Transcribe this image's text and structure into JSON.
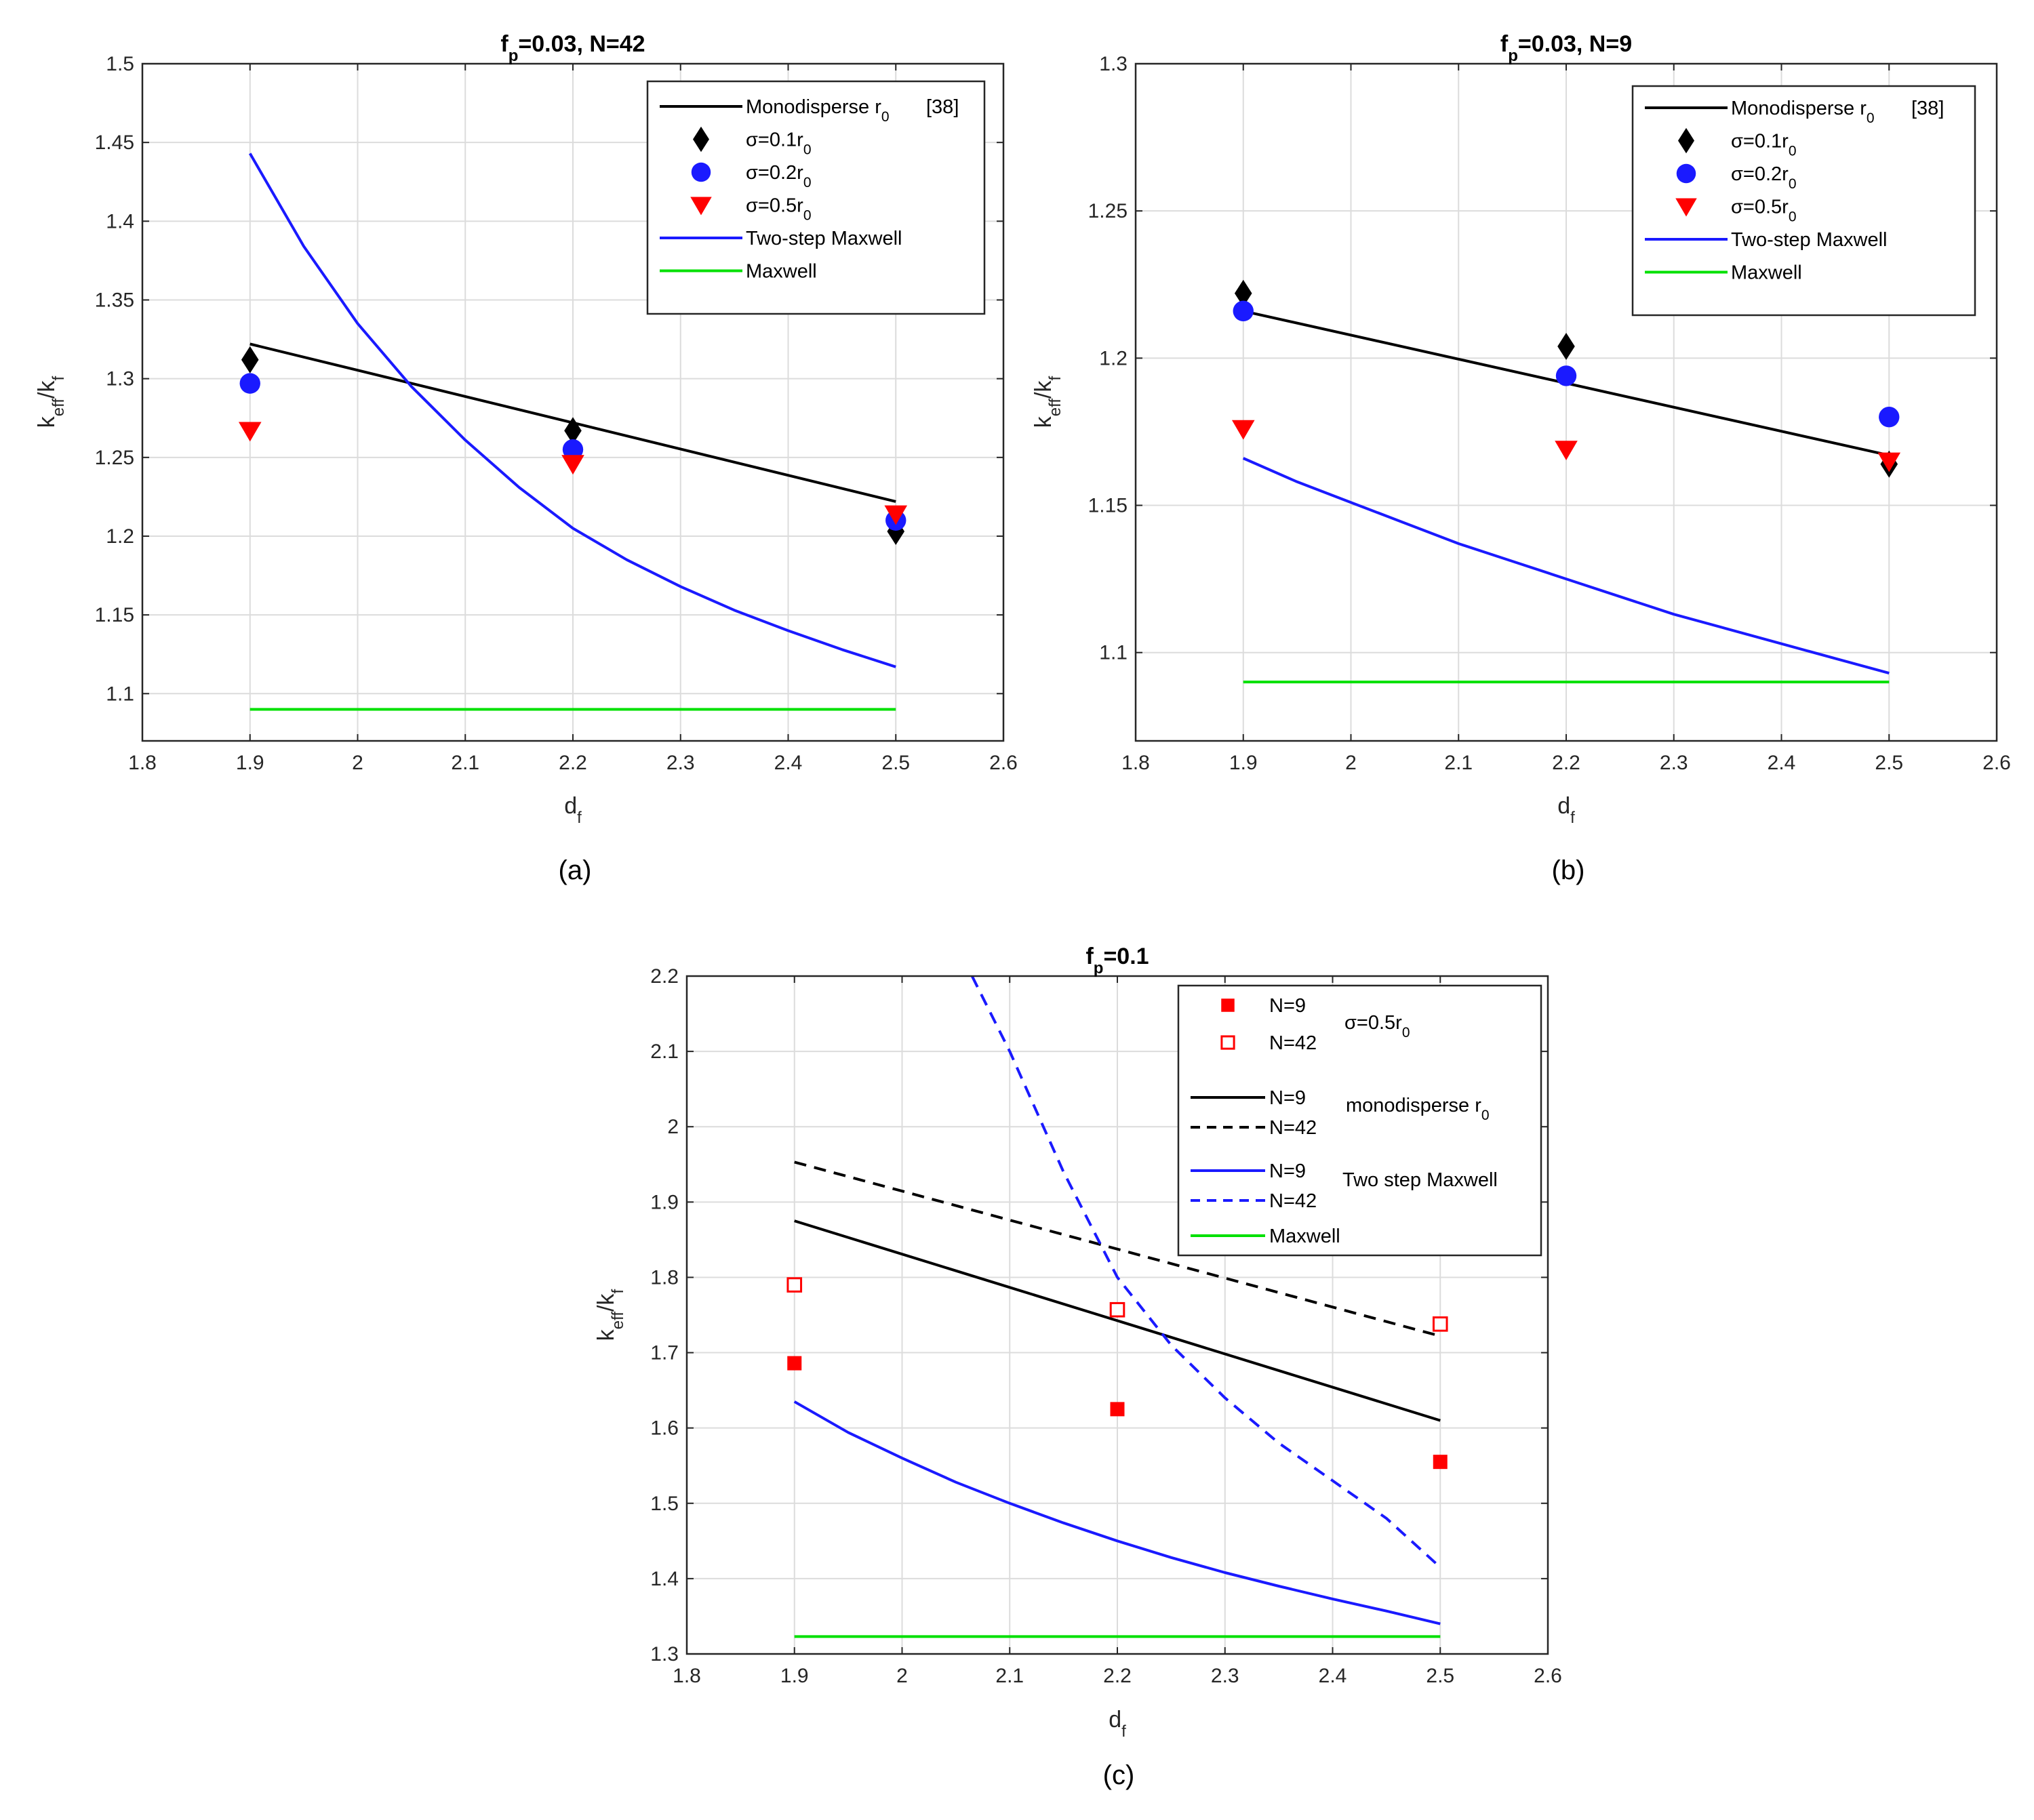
{
  "colors": {
    "black": "#000000",
    "blue": "#1a1aff",
    "red": "#ff0000",
    "green": "#00e000"
  },
  "chart_data": [
    {
      "id": "a",
      "type": "line",
      "caption": "(a)",
      "title": {
        "main": "f",
        "sub": "p",
        "rest": "=0.03, N=42"
      },
      "xlabel": {
        "main": "d",
        "sub": "f"
      },
      "ylabel": {
        "main": "k",
        "sub1": "eff",
        "mid": "/k",
        "sub2": "f"
      },
      "xlim": [
        1.8,
        2.6
      ],
      "ylim": [
        1.07,
        1.5
      ],
      "xticks": [
        1.8,
        1.9,
        2.0,
        2.1,
        2.2,
        2.3,
        2.4,
        2.5,
        2.6
      ],
      "xticklabels": [
        "1.8",
        "1.9",
        "2",
        "2.1",
        "2.2",
        "2.3",
        "2.4",
        "2.5",
        "2.6"
      ],
      "yticks": [
        1.1,
        1.15,
        1.2,
        1.25,
        1.3,
        1.35,
        1.4,
        1.45,
        1.5
      ],
      "yticklabels": [
        "1.1",
        "1.15",
        "1.2",
        "1.25",
        "1.3",
        "1.35",
        "1.4",
        "1.45",
        "1.5"
      ],
      "legend": "top-right",
      "series": [
        {
          "name": "Monodisperse r",
          "sub": "0",
          "suffix": "[38]",
          "style": "line",
          "color": "#000000",
          "dash": false,
          "x": [
            1.9,
            2.5
          ],
          "y": [
            1.322,
            1.222
          ]
        },
        {
          "name": "σ=0.1r",
          "sub": "0",
          "style": "marker",
          "marker": "diamond",
          "color": "#000000",
          "filled": true,
          "x": [
            1.9,
            2.2,
            2.5
          ],
          "y": [
            1.312,
            1.267,
            1.203
          ]
        },
        {
          "name": "σ=0.2r",
          "sub": "0",
          "style": "marker",
          "marker": "circle",
          "color": "#1a1aff",
          "filled": true,
          "x": [
            1.9,
            2.2,
            2.5
          ],
          "y": [
            1.297,
            1.255,
            1.21
          ]
        },
        {
          "name": "σ=0.5r",
          "sub": "0",
          "style": "marker",
          "marker": "triangle-down",
          "color": "#ff0000",
          "filled": true,
          "x": [
            1.9,
            2.2,
            2.5
          ],
          "y": [
            1.267,
            1.246,
            1.214
          ]
        },
        {
          "name": "Two-step Maxwell",
          "style": "line",
          "color": "#1a1aff",
          "dash": false,
          "x": [
            1.9,
            1.95,
            2.0,
            2.05,
            2.1,
            2.15,
            2.2,
            2.25,
            2.3,
            2.35,
            2.4,
            2.45,
            2.5
          ],
          "y": [
            1.443,
            1.384,
            1.335,
            1.295,
            1.261,
            1.231,
            1.205,
            1.185,
            1.168,
            1.153,
            1.14,
            1.128,
            1.117
          ]
        },
        {
          "name": "Maxwell",
          "style": "line",
          "color": "#00e000",
          "dash": false,
          "x": [
            1.9,
            2.5
          ],
          "y": [
            1.09,
            1.09
          ]
        }
      ]
    },
    {
      "id": "b",
      "type": "line",
      "caption": "(b)",
      "title": {
        "main": "f",
        "sub": "p",
        "rest": "=0.03, N=9"
      },
      "xlabel": {
        "main": "d",
        "sub": "f"
      },
      "ylabel": {
        "main": "k",
        "sub1": "eff",
        "mid": "/k",
        "sub2": "f"
      },
      "xlim": [
        1.8,
        2.6
      ],
      "ylim": [
        1.07,
        1.3
      ],
      "xticks": [
        1.8,
        1.9,
        2.0,
        2.1,
        2.2,
        2.3,
        2.4,
        2.5,
        2.6
      ],
      "xticklabels": [
        "1.8",
        "1.9",
        "2",
        "2.1",
        "2.2",
        "2.3",
        "2.4",
        "2.5",
        "2.6"
      ],
      "yticks": [
        1.1,
        1.15,
        1.2,
        1.25,
        1.3
      ],
      "yticklabels": [
        "1.1",
        "1.15",
        "1.2",
        "1.25",
        "1.3"
      ],
      "legend": "top-right",
      "series": [
        {
          "name": "Monodisperse r",
          "sub": "0",
          "suffix": "[38]",
          "style": "line",
          "color": "#000000",
          "dash": false,
          "x": [
            1.9,
            2.5
          ],
          "y": [
            1.216,
            1.167
          ]
        },
        {
          "name": "σ=0.1r",
          "sub": "0",
          "style": "marker",
          "marker": "diamond",
          "color": "#000000",
          "filled": true,
          "x": [
            1.9,
            2.2,
            2.5
          ],
          "y": [
            1.222,
            1.204,
            1.164
          ]
        },
        {
          "name": "σ=0.2r",
          "sub": "0",
          "style": "marker",
          "marker": "circle",
          "color": "#1a1aff",
          "filled": true,
          "x": [
            1.9,
            2.2,
            2.5
          ],
          "y": [
            1.216,
            1.194,
            1.18
          ]
        },
        {
          "name": "σ=0.5r",
          "sub": "0",
          "style": "marker",
          "marker": "triangle-down",
          "color": "#ff0000",
          "filled": true,
          "x": [
            1.9,
            2.2,
            2.5
          ],
          "y": [
            1.176,
            1.169,
            1.165
          ]
        },
        {
          "name": "Two-step Maxwell",
          "style": "line",
          "color": "#1a1aff",
          "dash": false,
          "x": [
            1.9,
            1.95,
            2.0,
            2.05,
            2.1,
            2.15,
            2.2,
            2.25,
            2.3,
            2.35,
            2.4,
            2.45,
            2.5
          ],
          "y": [
            1.166,
            1.158,
            1.151,
            1.144,
            1.137,
            1.131,
            1.125,
            1.119,
            1.113,
            1.108,
            1.103,
            1.098,
            1.093
          ]
        },
        {
          "name": "Maxwell",
          "style": "line",
          "color": "#00e000",
          "dash": false,
          "x": [
            1.9,
            2.5
          ],
          "y": [
            1.09,
            1.09
          ]
        }
      ]
    },
    {
      "id": "c",
      "type": "line",
      "caption": "(c)",
      "title": {
        "main": "f",
        "sub": "p",
        "rest": "=0.1"
      },
      "xlabel": {
        "main": "d",
        "sub": "f"
      },
      "ylabel": {
        "main": "k",
        "sub1": "eff",
        "mid": "/k",
        "sub2": "f"
      },
      "xlim": [
        1.8,
        2.6
      ],
      "ylim": [
        1.3,
        2.2
      ],
      "xticks": [
        1.8,
        1.9,
        2.0,
        2.1,
        2.2,
        2.3,
        2.4,
        2.5,
        2.6
      ],
      "xticklabels": [
        "1.8",
        "1.9",
        "2",
        "2.1",
        "2.2",
        "2.3",
        "2.4",
        "2.5",
        "2.6"
      ],
      "yticks": [
        1.3,
        1.4,
        1.5,
        1.6,
        1.7,
        1.8,
        1.9,
        2.0,
        2.1,
        2.2
      ],
      "yticklabels": [
        "1.3",
        "1.4",
        "1.5",
        "1.6",
        "1.7",
        "1.8",
        "1.9",
        "2",
        "2.1",
        "2.2"
      ],
      "legend": "top-right",
      "legend_groups": [
        {
          "label": "σ=0.5r",
          "sub": "0"
        },
        {
          "label": "monodisperse r",
          "sub": "0"
        },
        {
          "label": "Two step Maxwell"
        }
      ],
      "series": [
        {
          "name": "N=9",
          "style": "marker",
          "marker": "square",
          "color": "#ff0000",
          "filled": true,
          "x": [
            1.9,
            2.2,
            2.5
          ],
          "y": [
            1.686,
            1.625,
            1.555
          ]
        },
        {
          "name": "N=42",
          "style": "marker",
          "marker": "square",
          "color": "#ff0000",
          "filled": false,
          "x": [
            1.9,
            2.2,
            2.5
          ],
          "y": [
            1.79,
            1.757,
            1.738
          ]
        },
        {
          "name": "N=9",
          "style": "line",
          "color": "#000000",
          "dash": false,
          "x": [
            1.9,
            2.5
          ],
          "y": [
            1.875,
            1.61
          ]
        },
        {
          "name": "N=42",
          "style": "line",
          "color": "#000000",
          "dash": true,
          "x": [
            1.9,
            2.5
          ],
          "y": [
            1.953,
            1.722
          ]
        },
        {
          "name": "N=9",
          "style": "line",
          "color": "#1a1aff",
          "dash": false,
          "x": [
            1.9,
            1.95,
            2.0,
            2.05,
            2.1,
            2.15,
            2.2,
            2.25,
            2.3,
            2.35,
            2.4,
            2.45,
            2.5
          ],
          "y": [
            1.635,
            1.594,
            1.56,
            1.528,
            1.5,
            1.474,
            1.45,
            1.428,
            1.408,
            1.39,
            1.373,
            1.357,
            1.34
          ]
        },
        {
          "name": "N=42",
          "style": "line",
          "color": "#1a1aff",
          "dash": true,
          "x": [
            2.065,
            2.1,
            2.15,
            2.2,
            2.25,
            2.3,
            2.35,
            2.4,
            2.45,
            2.5
          ],
          "y": [
            2.2,
            2.1,
            1.94,
            1.8,
            1.71,
            1.64,
            1.58,
            1.53,
            1.48,
            1.415
          ]
        },
        {
          "name": "Maxwell",
          "style": "line",
          "color": "#00e000",
          "dash": false,
          "x": [
            1.9,
            2.5
          ],
          "y": [
            1.323,
            1.323
          ]
        }
      ]
    }
  ]
}
